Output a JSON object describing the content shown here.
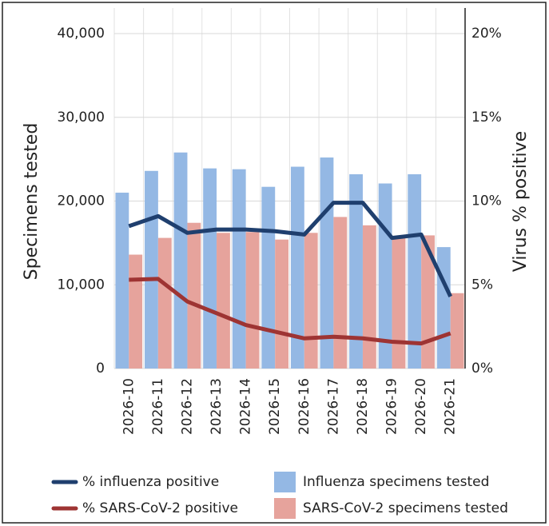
{
  "chart_data": {
    "type": "bar",
    "categories": [
      "2026-10",
      "2026-11",
      "2026-12",
      "2026-13",
      "2026-14",
      "2026-15",
      "2026-16",
      "2026-17",
      "2026-18",
      "2026-19",
      "2026-20",
      "2026-21"
    ],
    "y_label": "Specimens tested",
    "y2_label": "Virus % positive",
    "ylim": [
      0,
      40000
    ],
    "yticks": [
      0,
      {
        "value": 10000,
        "label": "10,000"
      },
      {
        "value": 20000,
        "label": "20,000"
      },
      {
        "value": 30000,
        "label": "30,000"
      },
      {
        "value": 40000,
        "label": "40,000"
      }
    ],
    "y2lim": [
      0,
      20
    ],
    "y2ticks": [
      {
        "value": 0,
        "label": "0%"
      },
      {
        "value": 5,
        "label": "5%"
      },
      {
        "value": 10,
        "label": "10%"
      },
      {
        "value": 15,
        "label": "15%"
      },
      {
        "value": 20,
        "label": "20%"
      }
    ],
    "grid": true,
    "series": [
      {
        "name": "% influenza positive",
        "type": "line",
        "axis": "y2",
        "color": "#1f3f6e",
        "values": [
          8.5,
          9.1,
          8.1,
          8.3,
          8.3,
          8.2,
          8.0,
          9.9,
          9.9,
          7.8,
          8.0,
          4.3
        ]
      },
      {
        "name": "Influenza specimens tested",
        "type": "bar",
        "color": "#94b8e4",
        "values": [
          21000,
          23600,
          25800,
          23900,
          23800,
          21700,
          24100,
          25200,
          23200,
          22100,
          23200,
          14500
        ]
      },
      {
        "name": "% SARS-CoV-2 positive",
        "type": "line",
        "axis": "y2",
        "color": "#9e3433",
        "values": [
          5.3,
          5.35,
          4.0,
          3.3,
          2.6,
          2.2,
          1.8,
          1.9,
          1.8,
          1.6,
          1.5,
          2.1
        ]
      },
      {
        "name": "SARS-CoV-2 specimens tested",
        "type": "bar",
        "color": "#e6a39c",
        "values": [
          13600,
          15600,
          17400,
          16200,
          16300,
          15400,
          16200,
          18100,
          17100,
          15800,
          15900,
          9000
        ]
      }
    ]
  }
}
